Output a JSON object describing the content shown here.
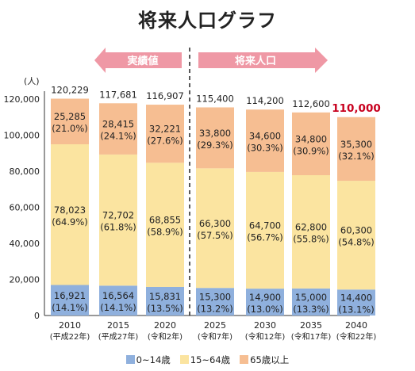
{
  "chart_data": {
    "type": "bar",
    "stacked": true,
    "title": "将来人口グラフ",
    "y_unit": "(人)",
    "ylim": [
      0,
      120000
    ],
    "yticks": [
      "0",
      "20,000",
      "40,000",
      "60,000",
      "80,000",
      "100,000",
      "120,000"
    ],
    "ytick_values": [
      0,
      20000,
      40000,
      60000,
      80000,
      100000,
      120000
    ],
    "categories": [
      "2010",
      "2015",
      "2020",
      "2025",
      "2030",
      "2035",
      "2040"
    ],
    "category_eras": [
      "(平成22年)",
      "(平成27年)",
      "(令和2年)",
      "(令和7年)",
      "(令和12年)",
      "(令和17年)",
      "(令和22年)"
    ],
    "totals": [
      120229,
      117681,
      116907,
      115400,
      114200,
      112600,
      110000
    ],
    "total_labels": [
      "120,229",
      "117,681",
      "116,907",
      "115,400",
      "114,200",
      "112,600",
      "110,000"
    ],
    "highlight_total_index": 6,
    "series": [
      {
        "name": "0~14歳",
        "color": "#8fb0dd",
        "values": [
          16921,
          16564,
          15831,
          15300,
          14900,
          15000,
          14400
        ],
        "value_labels": [
          "16,921",
          "16,564",
          "15,831",
          "15,300",
          "14,900",
          "15,000",
          "14,400"
        ],
        "percent_labels": [
          "(14.1%)",
          "(14.1%)",
          "(13.5%)",
          "(13.2%)",
          "(13.0%)",
          "(13.3%)",
          "(13.1%)"
        ]
      },
      {
        "name": "15~64歳",
        "color": "#fbe4a0",
        "values": [
          78023,
          72702,
          68855,
          66300,
          64700,
          62800,
          60300
        ],
        "value_labels": [
          "78,023",
          "72,702",
          "68,855",
          "66,300",
          "64,700",
          "62,800",
          "60,300"
        ],
        "percent_labels": [
          "(64.9%)",
          "(61.8%)",
          "(58.9%)",
          "(57.5%)",
          "(56.7%)",
          "(55.8%)",
          "(54.8%)"
        ]
      },
      {
        "name": "65歳以上",
        "color": "#f6be92",
        "values": [
          25285,
          28415,
          32221,
          33800,
          34600,
          34800,
          35300
        ],
        "value_labels": [
          "25,285",
          "28,415",
          "32,221",
          "33,800",
          "34,600",
          "34,800",
          "35,300"
        ],
        "percent_labels": [
          "(21.0%)",
          "(24.1%)",
          "(27.6%)",
          "(29.3%)",
          "(30.3%)",
          "(30.9%)",
          "(32.1%)"
        ]
      }
    ],
    "period_arrows": [
      {
        "label": "実績値",
        "direction": "left"
      },
      {
        "label": "将来人口",
        "direction": "right"
      }
    ],
    "divider_style": "dashed",
    "arrow_color": "#ef98a5",
    "highlight_color": "#c8001e",
    "legend_position": "bottom"
  }
}
